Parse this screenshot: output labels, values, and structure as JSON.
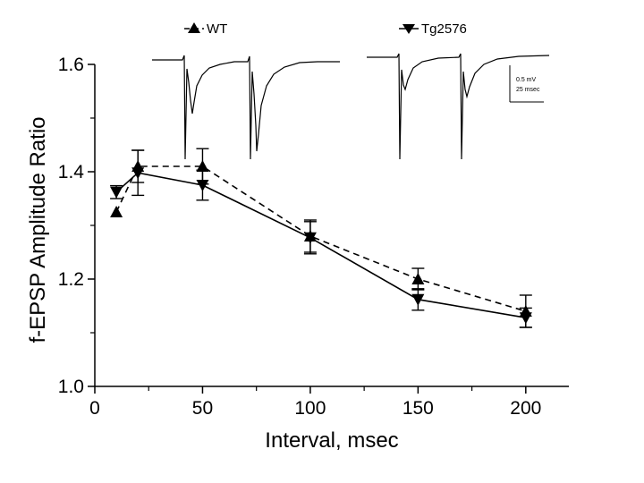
{
  "chart_data": {
    "type": "line",
    "title": "",
    "xlabel": "Interval, msec",
    "ylabel": "f-EPSP Amplitude Ratio",
    "xlim": [
      0,
      220
    ],
    "ylim": [
      1.0,
      1.6
    ],
    "xticks": [
      0,
      50,
      100,
      150,
      200
    ],
    "yticks": [
      1.0,
      1.2,
      1.4,
      1.6
    ],
    "xtick_labels": [
      "0",
      "50",
      "100",
      "150",
      "200"
    ],
    "ytick_labels": [
      "1.0",
      "1.2",
      "1.4",
      "1.6"
    ],
    "grid": false,
    "legend_position": "top",
    "x": [
      10,
      20,
      50,
      100,
      150,
      200
    ],
    "series": [
      {
        "name": "WT",
        "values": [
          1.325,
          1.41,
          1.41,
          1.28,
          1.2,
          1.14
        ],
        "errors": [
          0.0,
          0.03,
          0.033,
          0.03,
          0.02,
          0.03
        ],
        "marker": "triangle-up",
        "line_style": "dashed",
        "color": "#000000"
      },
      {
        "name": "Tg2576",
        "values": [
          1.362,
          1.398,
          1.375,
          1.277,
          1.162,
          1.128
        ],
        "errors": [
          0.012,
          0.042,
          0.028,
          0.03,
          0.02,
          0.018
        ],
        "marker": "triangle-down",
        "line_style": "solid",
        "color": "#000000"
      }
    ],
    "inset": {
      "description": "example paired-pulse field EPSP traces",
      "scale_bar_labels": [
        "0.5 mV",
        "25 msec"
      ]
    }
  }
}
